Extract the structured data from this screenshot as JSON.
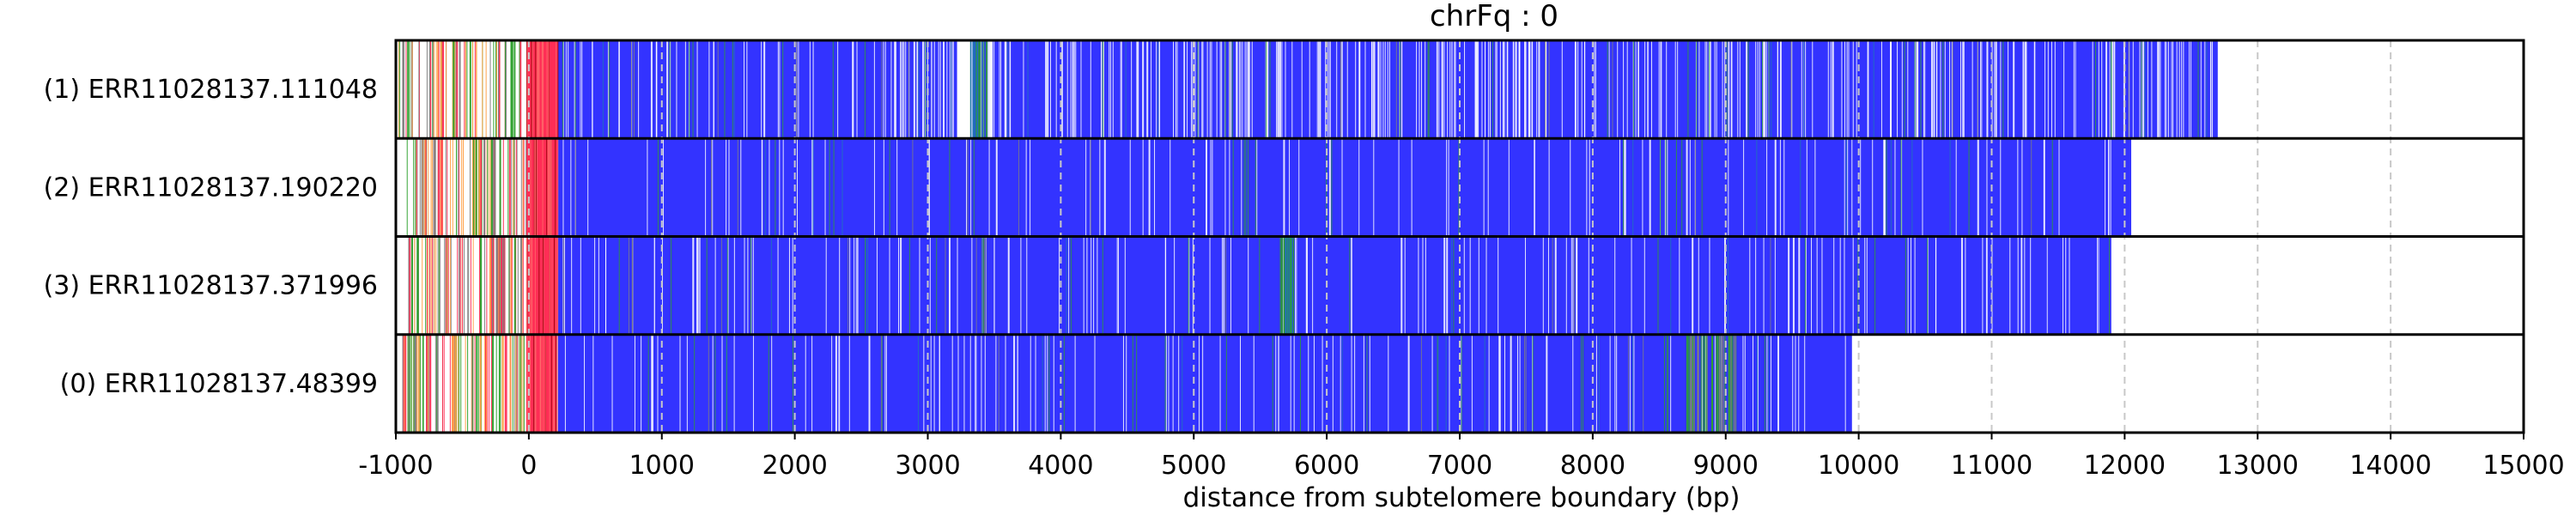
{
  "chart_data": {
    "type": "heatmap",
    "title": "chrFq : 0",
    "xlabel": "distance from subtelomere boundary (bp)",
    "ylabel": "",
    "xlim": [
      -1000,
      15000
    ],
    "xticks": [
      "-1000",
      "0",
      "1000",
      "2000",
      "3000",
      "4000",
      "5000",
      "6000",
      "7000",
      "8000",
      "9000",
      "10000",
      "11000",
      "12000",
      "13000",
      "14000",
      "15000"
    ],
    "grid": "vertical dashed at ticks",
    "colors": {
      "telomere_repeat": "#3333ff",
      "subtelomere_variant": "#ff2d55",
      "green_variant": "#2ca02c",
      "gray_variant": "#808080",
      "orange_variant": "#ff9f43",
      "white_gap": "#ffffff"
    },
    "rows": [
      {
        "label": "(1) ERR11028137.111048",
        "start": -1000,
        "end": 12900,
        "main_start": 220,
        "main_end": 12700
      },
      {
        "label": "(2) ERR11028137.190220",
        "start": -950,
        "end": 12050,
        "main_start": 200,
        "main_end": 12050
      },
      {
        "label": "(3) ERR11028137.371996",
        "start": -950,
        "end": 11900,
        "main_start": 200,
        "main_end": 11900
      },
      {
        "label": "(0) ERR11028137.48399",
        "start": -950,
        "end": 9950,
        "main_start": 200,
        "main_end": 9950
      }
    ]
  }
}
